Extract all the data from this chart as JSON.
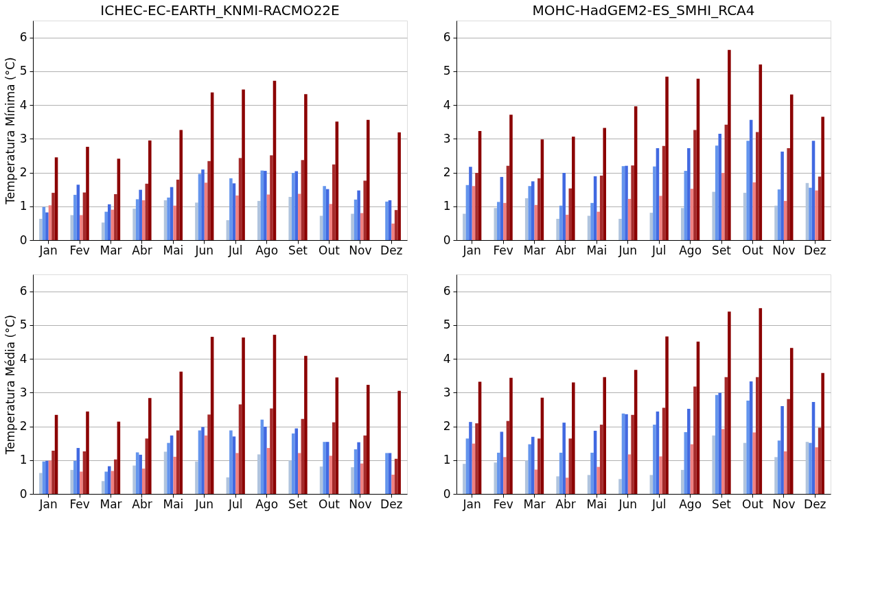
{
  "chart_data": [
    {
      "type": "bar",
      "title": "ICHEC-EC-EARTH_KNMI-RACMO22E",
      "ylabel": "Temperatura Mínima (°C)",
      "categories": [
        "Jan",
        "Fev",
        "Mar",
        "Abr",
        "Mai",
        "Jun",
        "Jul",
        "Ago",
        "Set",
        "Out",
        "Nov",
        "Dez"
      ],
      "ylim": [
        0,
        6.5
      ],
      "yticks": [
        0,
        1,
        2,
        3,
        4,
        5,
        6
      ],
      "grid": "y",
      "legend": false,
      "series": [
        {
          "color": "#b0c4de",
          "values": [
            0.63,
            0.74,
            0.52,
            0.93,
            1.18,
            1.11,
            0.59,
            1.16,
            1.28,
            0.72,
            0.78,
            null
          ]
        },
        {
          "color": "#6495ed",
          "values": [
            0.98,
            1.34,
            0.84,
            1.21,
            1.26,
            1.96,
            1.83,
            2.06,
            1.99,
            1.6,
            1.2,
            1.14
          ]
        },
        {
          "color": "#4169e1",
          "values": [
            0.82,
            1.64,
            1.06,
            1.49,
            1.57,
            2.09,
            1.68,
            2.05,
            2.04,
            1.51,
            1.47,
            1.18
          ]
        },
        {
          "color": "#f08080",
          "values": [
            1.03,
            0.74,
            0.9,
            1.18,
            1.02,
            1.7,
            1.32,
            1.35,
            1.37,
            1.07,
            0.8,
            0.49
          ]
        },
        {
          "color": "#a52a2a",
          "values": [
            1.4,
            1.41,
            1.36,
            1.67,
            1.79,
            2.34,
            2.43,
            2.51,
            2.37,
            2.24,
            1.76,
            0.89
          ]
        },
        {
          "color": "#8b0000",
          "values": [
            2.45,
            2.76,
            2.41,
            2.95,
            3.26,
            4.37,
            4.46,
            4.72,
            4.32,
            3.51,
            3.56,
            3.19
          ]
        }
      ]
    },
    {
      "type": "bar",
      "title": "MOHC-HadGEM2-ES_SMHI_RCA4",
      "categories": [
        "Jan",
        "Fev",
        "Mar",
        "Abr",
        "Mai",
        "Jun",
        "Jul",
        "Ago",
        "Set",
        "Out",
        "Nov",
        "Dez"
      ],
      "ylim": [
        0,
        6.5
      ],
      "yticks": [
        0,
        1,
        2,
        3,
        4,
        5,
        6
      ],
      "grid": "y",
      "legend": false,
      "series": [
        {
          "color": "#b0c4de",
          "values": [
            0.78,
            0.95,
            1.24,
            0.63,
            0.72,
            0.63,
            0.81,
            0.95,
            1.43,
            1.4,
            1.02,
            1.69
          ]
        },
        {
          "color": "#6495ed",
          "values": [
            1.63,
            1.13,
            1.6,
            1.02,
            1.1,
            2.19,
            2.18,
            2.05,
            2.8,
            2.94,
            1.5,
            1.55
          ]
        },
        {
          "color": "#4169e1",
          "values": [
            2.17,
            1.87,
            1.74,
            1.99,
            1.89,
            2.2,
            2.72,
            2.72,
            3.15,
            3.56,
            2.62,
            2.94
          ]
        },
        {
          "color": "#f08080",
          "values": [
            1.6,
            1.1,
            1.04,
            0.75,
            0.84,
            1.22,
            1.31,
            1.52,
            1.99,
            1.71,
            1.16,
            1.47
          ]
        },
        {
          "color": "#a52a2a",
          "values": [
            1.99,
            2.2,
            1.83,
            1.53,
            1.91,
            2.21,
            2.79,
            3.26,
            3.42,
            3.2,
            2.72,
            1.88
          ]
        },
        {
          "color": "#8b0000",
          "values": [
            3.23,
            3.71,
            2.98,
            3.06,
            3.32,
            3.96,
            4.84,
            4.78,
            5.63,
            5.2,
            4.31,
            3.65
          ]
        }
      ]
    },
    {
      "type": "bar",
      "ylabel": "Temperatura Média (°C)",
      "categories": [
        "Jan",
        "Fev",
        "Mar",
        "Abr",
        "Mai",
        "Jun",
        "Jul",
        "Ago",
        "Set",
        "Out",
        "Nov",
        "Dez"
      ],
      "ylim": [
        0,
        6.5
      ],
      "yticks": [
        0,
        1,
        2,
        3,
        4,
        5,
        6
      ],
      "grid": "y",
      "legend": false,
      "series": [
        {
          "color": "#b0c4de",
          "values": [
            0.62,
            0.71,
            0.38,
            0.84,
            1.25,
            0.96,
            0.49,
            1.17,
            0.99,
            0.81,
            0.79,
            null
          ]
        },
        {
          "color": "#6495ed",
          "values": [
            0.96,
            0.98,
            0.66,
            1.23,
            1.51,
            1.88,
            1.88,
            2.2,
            1.79,
            1.54,
            1.32,
            1.21
          ]
        },
        {
          "color": "#4169e1",
          "values": [
            0.98,
            1.36,
            0.82,
            1.16,
            1.73,
            1.98,
            1.7,
            1.99,
            1.94,
            1.54,
            1.53,
            1.21
          ]
        },
        {
          "color": "#f08080",
          "values": [
            0.99,
            0.66,
            0.68,
            0.75,
            1.1,
            1.73,
            1.21,
            1.36,
            1.21,
            1.13,
            0.9,
            0.57
          ]
        },
        {
          "color": "#a52a2a",
          "values": [
            1.28,
            1.26,
            1.02,
            1.64,
            1.88,
            2.35,
            2.65,
            2.53,
            2.22,
            2.12,
            1.73,
            1.04
          ]
        },
        {
          "color": "#8b0000",
          "values": [
            2.34,
            2.44,
            2.14,
            2.84,
            3.62,
            4.65,
            4.63,
            4.71,
            4.09,
            3.45,
            3.23,
            3.05
          ]
        }
      ]
    },
    {
      "type": "bar",
      "categories": [
        "Jan",
        "Fev",
        "Mar",
        "Abr",
        "Mai",
        "Jun",
        "Jul",
        "Ago",
        "Set",
        "Out",
        "Nov",
        "Dez"
      ],
      "ylim": [
        0,
        6.5
      ],
      "yticks": [
        0,
        1,
        2,
        3,
        4,
        5,
        6
      ],
      "grid": "y",
      "legend": false,
      "series": [
        {
          "color": "#b0c4de",
          "values": [
            0.89,
            0.93,
            0.99,
            0.52,
            0.56,
            0.44,
            0.56,
            0.71,
            1.73,
            1.51,
            1.09,
            1.54
          ]
        },
        {
          "color": "#6495ed",
          "values": [
            1.64,
            1.22,
            1.47,
            1.22,
            1.22,
            2.38,
            2.05,
            1.83,
            2.93,
            2.76,
            1.58,
            1.51
          ]
        },
        {
          "color": "#4169e1",
          "values": [
            2.13,
            1.84,
            1.69,
            2.11,
            1.87,
            2.36,
            2.44,
            2.52,
            2.99,
            3.33,
            2.6,
            2.72
          ]
        },
        {
          "color": "#f08080",
          "values": [
            1.49,
            1.09,
            0.72,
            0.48,
            0.8,
            1.17,
            1.11,
            1.47,
            1.92,
            1.82,
            1.26,
            1.38
          ]
        },
        {
          "color": "#a52a2a",
          "values": [
            2.09,
            2.16,
            1.64,
            1.64,
            2.05,
            2.34,
            2.55,
            3.18,
            3.46,
            3.46,
            2.81,
            1.96
          ]
        },
        {
          "color": "#8b0000",
          "values": [
            3.32,
            3.44,
            2.85,
            3.3,
            3.46,
            3.67,
            4.66,
            4.51,
            5.4,
            5.5,
            4.32,
            3.58
          ]
        }
      ]
    }
  ]
}
